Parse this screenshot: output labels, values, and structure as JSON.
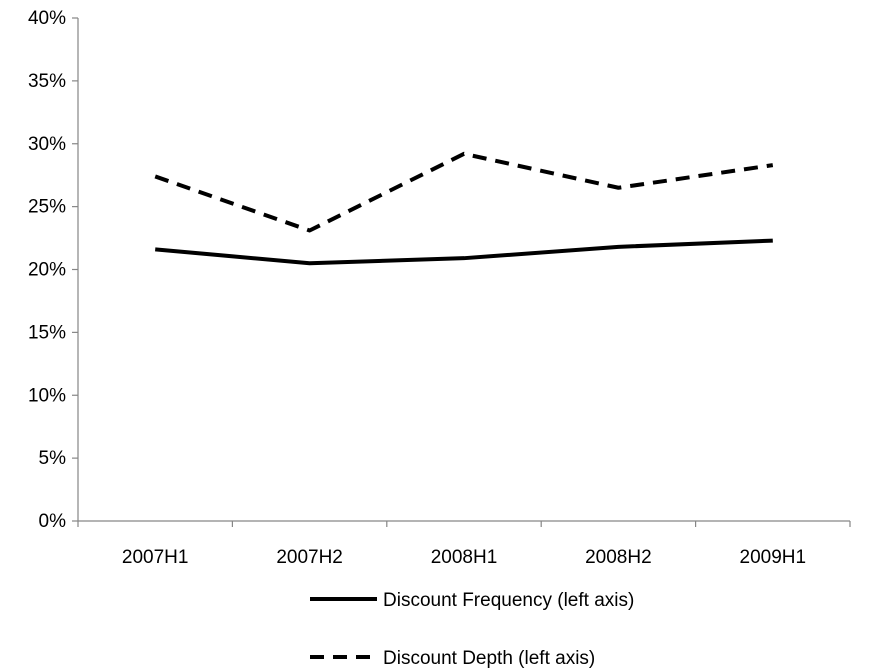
{
  "chart_data": {
    "type": "line",
    "categories": [
      "2007H1",
      "2007H2",
      "2008H1",
      "2008H2",
      "2009H1"
    ],
    "series": [
      {
        "name": "Discount Frequency (left axis)",
        "values": [
          21.6,
          20.5,
          20.9,
          21.8,
          22.3
        ],
        "style": "solid",
        "color": "#000000"
      },
      {
        "name": "Discount Depth (left axis)",
        "values": [
          27.4,
          23.1,
          29.2,
          26.5,
          28.3
        ],
        "style": "dashed",
        "color": "#000000"
      }
    ],
    "ylim": [
      0,
      40
    ],
    "y_ticks": [
      0,
      5,
      10,
      15,
      20,
      25,
      30,
      35,
      40
    ],
    "y_tick_labels": [
      "0%",
      "5%",
      "10%",
      "15%",
      "20%",
      "25%",
      "30%",
      "35%",
      "40%"
    ],
    "title": "",
    "xlabel": "",
    "ylabel": "",
    "grid": false,
    "legend_position": "bottom"
  }
}
